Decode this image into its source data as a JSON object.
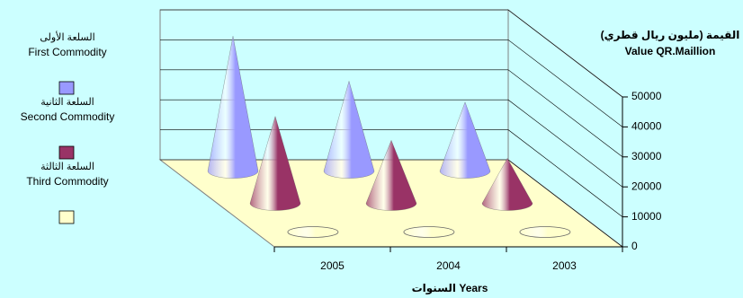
{
  "chart_data": {
    "type": "cone3d",
    "y_title_ar": "القيمة (مليون ريال قطري)",
    "y_title": "Value QR.Maillion",
    "x_title": "السنوات Years",
    "categories": [
      "2005",
      "2004",
      "2003"
    ],
    "series": [
      {
        "name_ar": "السلعة الأولى",
        "name": "First Commodity",
        "color": "#9999ff",
        "values": [
          45000,
          30000,
          23000
        ]
      },
      {
        "name_ar": "السلعة الثانية",
        "name": "Second Commodity",
        "color": "#993366",
        "values": [
          29000,
          21000,
          15000
        ]
      },
      {
        "name_ar": "السلعة الثالثة",
        "name": "Third Commodity",
        "color": "#ffffcc",
        "values": [
          0,
          0,
          0
        ]
      }
    ],
    "ylim": [
      0,
      50000
    ],
    "yticks": [
      0,
      10000,
      20000,
      30000,
      40000,
      50000
    ],
    "grid": true,
    "floor_color": "#ffffcc"
  }
}
